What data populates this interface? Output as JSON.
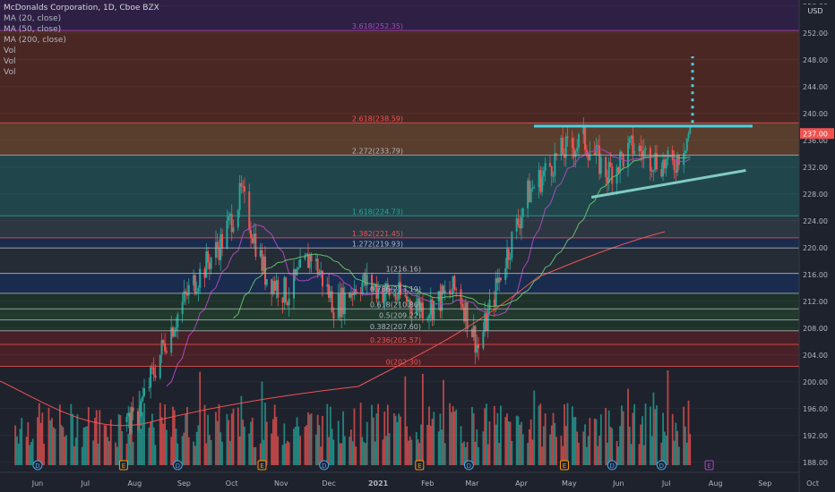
{
  "header": {
    "title": "McDonalds Corporation, 1D, Cboe BZX",
    "indicators": [
      "MA (20, close)",
      "MA (50, close)",
      "MA (200, close)",
      "Vol",
      "Vol",
      "Vol"
    ]
  },
  "currency": "USD",
  "last_price_badge": "237.00",
  "chart_data": {
    "type": "candlestick",
    "x_tick_labels": [
      "Jun",
      "Jul",
      "Aug",
      "Sep",
      "Oct",
      "Nov",
      "Dec",
      "2021",
      "Feb",
      "Mar",
      "Apr",
      "May",
      "Jun",
      "Jul",
      "Aug",
      "Sep",
      "Oct"
    ],
    "y_tick_labels": [
      188,
      192,
      196,
      200,
      204,
      208,
      212,
      216,
      220,
      224,
      228,
      232,
      236,
      240,
      244,
      248,
      252,
      256
    ],
    "ylim": [
      186.5,
      256.5
    ],
    "fib_levels": [
      {
        "label": "0(202.30)",
        "value": 202.3,
        "color": "#ef5350"
      },
      {
        "label": "0.236(205.57)",
        "value": 205.57,
        "color": "#ef5350"
      },
      {
        "label": "0.382(207.60)",
        "value": 207.6,
        "color": "#b2b5be"
      },
      {
        "label": "0.5(209.22)",
        "value": 209.22,
        "color": "#b2b5be"
      },
      {
        "label": "0.618(210.86)",
        "value": 210.86,
        "color": "#b2b5be"
      },
      {
        "label": "0.786(213.19)",
        "value": 213.19,
        "color": "#b2b5be"
      },
      {
        "label": "1(216.16)",
        "value": 216.16,
        "color": "#b2b5be"
      },
      {
        "label": "1.272(219.93)",
        "value": 219.93,
        "color": "#b2b5be"
      },
      {
        "label": "1.382(221.45)",
        "value": 221.45,
        "color": "#ef5350"
      },
      {
        "label": "1.618(224.73)",
        "value": 224.73,
        "color": "#26a69a"
      },
      {
        "label": "2.272(233.79)",
        "value": 233.79,
        "color": "#b2b5be"
      },
      {
        "label": "2.618(238.59)",
        "value": 238.59,
        "color": "#ef5350"
      },
      {
        "label": "3.618(252.35)",
        "value": 252.35,
        "color": "#ab47bc"
      }
    ],
    "price_path": [
      {
        "date": "2020-08-01",
        "price": 194
      },
      {
        "date": "2020-08-20",
        "price": 206
      },
      {
        "date": "2020-09-05",
        "price": 214
      },
      {
        "date": "2020-09-25",
        "price": 221
      },
      {
        "date": "2020-10-07",
        "price": 228
      },
      {
        "date": "2020-10-22",
        "price": 216
      },
      {
        "date": "2020-11-05",
        "price": 213
      },
      {
        "date": "2020-11-20",
        "price": 219
      },
      {
        "date": "2020-12-05",
        "price": 211
      },
      {
        "date": "2020-12-20",
        "price": 215
      },
      {
        "date": "2021-01-10",
        "price": 213
      },
      {
        "date": "2021-02-01",
        "price": 211
      },
      {
        "date": "2021-02-20",
        "price": 214
      },
      {
        "date": "2021-03-05",
        "price": 205
      },
      {
        "date": "2021-03-20",
        "price": 217
      },
      {
        "date": "2021-04-05",
        "price": 228
      },
      {
        "date": "2021-04-25",
        "price": 234
      },
      {
        "date": "2021-05-10",
        "price": 236
      },
      {
        "date": "2021-05-25",
        "price": 231
      },
      {
        "date": "2021-06-10",
        "price": 235
      },
      {
        "date": "2021-06-25",
        "price": 233
      },
      {
        "date": "2021-07-05",
        "price": 232
      },
      {
        "date": "2021-07-15",
        "price": 237
      }
    ],
    "series": [
      {
        "name": "MA (20, close)",
        "color": "#ab47bc"
      },
      {
        "name": "MA (50, close)",
        "color": "#66bb6a"
      },
      {
        "name": "MA (200, close)",
        "color": "#ef5350"
      },
      {
        "name": "Vol",
        "color": "#26a69a"
      }
    ],
    "annotations": {
      "resistance": 238.1,
      "support_trend": [
        {
          "date": "2021-05-15",
          "price": 227.5
        },
        {
          "date": "2021-08-20",
          "price": 231.5
        }
      ],
      "target_arrow": [
        238.6,
        248.5
      ]
    }
  }
}
